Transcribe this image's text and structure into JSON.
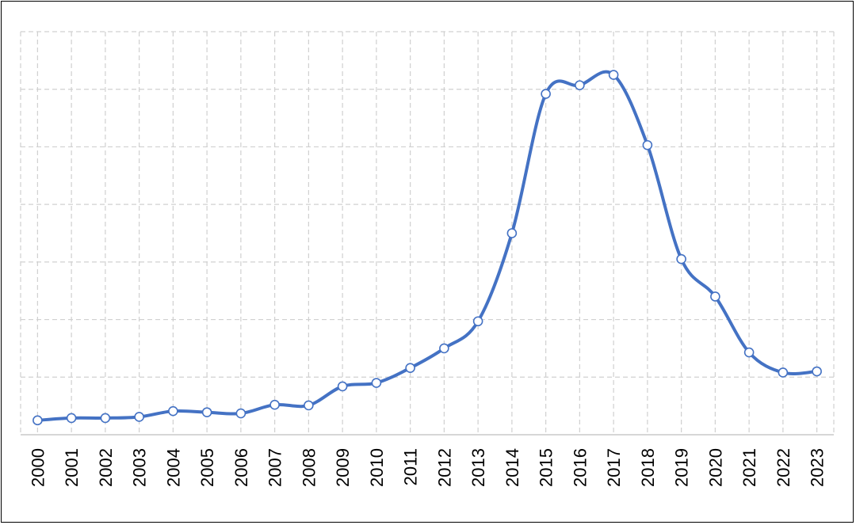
{
  "chart_data": {
    "type": "line",
    "title": "",
    "xlabel": "",
    "ylabel": "",
    "x": [
      "2000",
      "2001",
      "2002",
      "2003",
      "2004",
      "2005",
      "2006",
      "2007",
      "2008",
      "2009",
      "2010",
      "2011",
      "2012",
      "2013",
      "2014",
      "2015",
      "2016",
      "2017",
      "2018",
      "2019",
      "2020",
      "2021",
      "2022",
      "2023"
    ],
    "series": [
      {
        "values": [
          0.25,
          0.29,
          0.29,
          0.31,
          0.41,
          0.39,
          0.37,
          0.52,
          0.51,
          0.84,
          0.9,
          1.16,
          1.5,
          1.97,
          3.5,
          5.92,
          6.07,
          6.25,
          5.03,
          3.05,
          2.4,
          1.43,
          1.08,
          1.1
        ]
      }
    ],
    "ylim": [
      0,
      7
    ],
    "grid": true,
    "line_color": "#4472c4",
    "marker_fill": "#ffffff",
    "grid_color": "#d0d0d0"
  }
}
